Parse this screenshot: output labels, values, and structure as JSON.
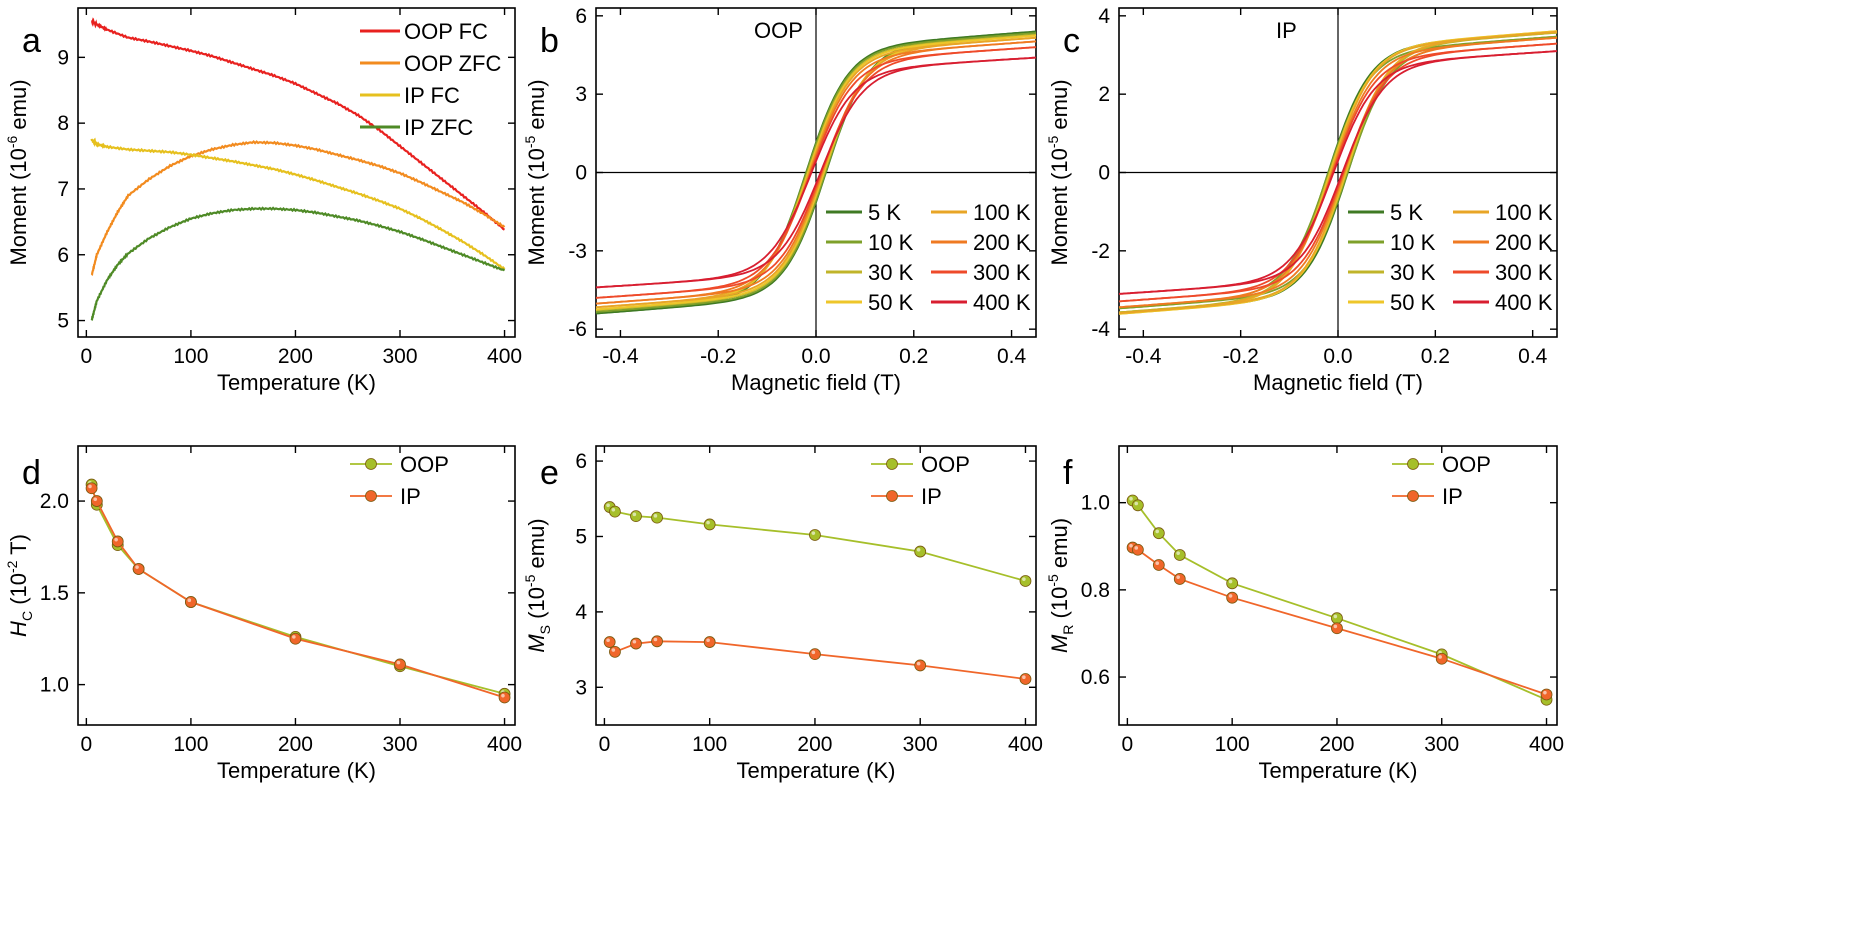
{
  "figure": {
    "colors": {
      "oop_fc": "#e8211f",
      "oop_zfc": "#f28b1f",
      "ip_fc": "#e6c01e",
      "ip_zfc": "#4e8a26",
      "oop_marker": "#a6bf2a",
      "ip_marker": "#f0662a",
      "t5": "#3f7a24",
      "t10": "#7ea02a",
      "t30": "#c0b42a",
      "t50": "#eec62a",
      "t100": "#e8a526",
      "t200": "#ef7a22",
      "t300": "#ee4a2a",
      "t400": "#d81e30"
    }
  },
  "chart_data": [
    {
      "panel": "a",
      "type": "line",
      "xlabel": "Temperature (K)",
      "ylabel": {
        "main": "Moment (10",
        "sup": "-6",
        "unit": " emu)"
      },
      "xlim": [
        -8,
        410
      ],
      "ylim": [
        4.75,
        9.75
      ],
      "xticks": [
        "0",
        "100",
        "200",
        "300",
        "400"
      ],
      "yticks": [
        "5",
        "6",
        "7",
        "8",
        "9"
      ],
      "series": [
        {
          "name": "OOP FC",
          "x": [
            5,
            10,
            20,
            40,
            60,
            80,
            100,
            120,
            140,
            160,
            180,
            200,
            220,
            240,
            260,
            280,
            300,
            320,
            340,
            360,
            380,
            400
          ],
          "y": [
            9.55,
            9.5,
            9.42,
            9.3,
            9.24,
            9.17,
            9.1,
            9.02,
            8.92,
            8.82,
            8.72,
            8.6,
            8.45,
            8.3,
            8.12,
            7.9,
            7.65,
            7.4,
            7.15,
            6.9,
            6.65,
            6.38
          ]
        },
        {
          "name": "OOP ZFC",
          "x": [
            5,
            10,
            20,
            30,
            40,
            60,
            80,
            100,
            120,
            140,
            160,
            180,
            200,
            220,
            240,
            260,
            280,
            300,
            320,
            340,
            360,
            380,
            400
          ],
          "y": [
            5.68,
            6.0,
            6.35,
            6.65,
            6.9,
            7.15,
            7.35,
            7.5,
            7.6,
            7.67,
            7.71,
            7.7,
            7.66,
            7.6,
            7.52,
            7.44,
            7.35,
            7.24,
            7.1,
            6.95,
            6.8,
            6.62,
            6.42
          ]
        },
        {
          "name": "IP FC",
          "x": [
            5,
            10,
            20,
            40,
            60,
            80,
            100,
            120,
            140,
            160,
            180,
            200,
            220,
            240,
            260,
            280,
            300,
            320,
            340,
            360,
            380,
            400
          ],
          "y": [
            7.75,
            7.68,
            7.64,
            7.6,
            7.58,
            7.56,
            7.52,
            7.47,
            7.42,
            7.36,
            7.3,
            7.22,
            7.13,
            7.03,
            6.93,
            6.82,
            6.7,
            6.55,
            6.38,
            6.2,
            6.0,
            5.78
          ]
        },
        {
          "name": "IP ZFC",
          "x": [
            5,
            10,
            20,
            30,
            40,
            60,
            80,
            100,
            120,
            140,
            160,
            180,
            200,
            220,
            240,
            260,
            280,
            300,
            320,
            340,
            360,
            380,
            400
          ],
          "y": [
            5.0,
            5.3,
            5.62,
            5.85,
            6.02,
            6.25,
            6.42,
            6.55,
            6.63,
            6.68,
            6.7,
            6.7,
            6.68,
            6.64,
            6.58,
            6.52,
            6.44,
            6.35,
            6.24,
            6.12,
            6.0,
            5.88,
            5.76
          ]
        }
      ]
    },
    {
      "panel": "b",
      "type": "line",
      "annotation": "OOP",
      "xlabel": "Magnetic field (T)",
      "ylabel": {
        "main": "Moment (10",
        "sup": "-5",
        "unit": " emu)"
      },
      "xlim": [
        -0.45,
        0.45
      ],
      "ylim": [
        -6.3,
        6.3
      ],
      "xticks": [
        "-0.4",
        "-0.2",
        "0.0",
        "0.2",
        "0.4"
      ],
      "yticks": [
        "-6",
        "-3",
        "0",
        "3",
        "6"
      ],
      "series": [
        {
          "name": "5 K",
          "ms": 5.4,
          "hc": 0.0209
        },
        {
          "name": "10 K",
          "ms": 5.34,
          "hc": 0.0198
        },
        {
          "name": "30 K",
          "ms": 5.27,
          "hc": 0.0176
        },
        {
          "name": "50 K",
          "ms": 5.24,
          "hc": 0.0163
        },
        {
          "name": "100 K",
          "ms": 5.16,
          "hc": 0.0145
        },
        {
          "name": "200 K",
          "ms": 5.02,
          "hc": 0.0126
        },
        {
          "name": "300 K",
          "ms": 4.8,
          "hc": 0.011
        },
        {
          "name": "400 K",
          "ms": 4.4,
          "hc": 0.0095
        }
      ]
    },
    {
      "panel": "c",
      "type": "line",
      "annotation": "IP",
      "xlabel": "Magnetic field (T)",
      "ylabel": {
        "main": "Moment (10",
        "sup": "-5",
        "unit": " emu)"
      },
      "xlim": [
        -0.45,
        0.45
      ],
      "ylim": [
        -4.2,
        4.2
      ],
      "xticks": [
        "-0.4",
        "-0.2",
        "0.0",
        "0.2",
        "0.4"
      ],
      "yticks": [
        "-4",
        "-2",
        "0",
        "2",
        "4"
      ],
      "series": [
        {
          "name": "5 K",
          "ms": 3.6,
          "hc": 0.0207
        },
        {
          "name": "10 K",
          "ms": 3.47,
          "hc": 0.02
        },
        {
          "name": "30 K",
          "ms": 3.57,
          "hc": 0.0178
        },
        {
          "name": "50 K",
          "ms": 3.61,
          "hc": 0.0163
        },
        {
          "name": "100 K",
          "ms": 3.59,
          "hc": 0.0145
        },
        {
          "name": "200 K",
          "ms": 3.44,
          "hc": 0.0125
        },
        {
          "name": "300 K",
          "ms": 3.29,
          "hc": 0.0111
        },
        {
          "name": "400 K",
          "ms": 3.1,
          "hc": 0.0093
        }
      ]
    },
    {
      "panel": "d",
      "type": "scatter",
      "xlabel": "Temperature (K)",
      "ylabel": {
        "main": "H",
        "sub": "C",
        "rest": " (10",
        "sup": "-2",
        "unit": " T)"
      },
      "xlim": [
        -8,
        410
      ],
      "ylim": [
        0.78,
        2.3
      ],
      "xticks": [
        "0",
        "100",
        "200",
        "300",
        "400"
      ],
      "yticks": [
        "1.0",
        "1.5",
        "2.0"
      ],
      "series": [
        {
          "name": "OOP",
          "x": [
            5,
            10,
            30,
            50,
            100,
            200,
            300,
            400
          ],
          "y": [
            2.09,
            1.98,
            1.76,
            1.63,
            1.45,
            1.26,
            1.1,
            0.95
          ]
        },
        {
          "name": "IP",
          "x": [
            5,
            10,
            30,
            50,
            100,
            200,
            300,
            400
          ],
          "y": [
            2.07,
            2.0,
            1.78,
            1.63,
            1.45,
            1.25,
            1.11,
            0.93
          ]
        }
      ]
    },
    {
      "panel": "e",
      "type": "scatter",
      "xlabel": "Temperature (K)",
      "ylabel": {
        "main": "M",
        "sub": "S",
        "rest": " (10",
        "sup": "-5",
        "unit": " emu)"
      },
      "xlim": [
        -8,
        410
      ],
      "ylim": [
        2.5,
        6.2
      ],
      "xticks": [
        "0",
        "100",
        "200",
        "300",
        "400"
      ],
      "yticks": [
        "3",
        "4",
        "5",
        "6"
      ],
      "series": [
        {
          "name": "OOP",
          "x": [
            5,
            10,
            30,
            50,
            100,
            200,
            300,
            400
          ],
          "y": [
            5.39,
            5.33,
            5.27,
            5.25,
            5.16,
            5.02,
            4.8,
            4.41
          ]
        },
        {
          "name": "IP",
          "x": [
            5,
            10,
            30,
            50,
            100,
            200,
            300,
            400
          ],
          "y": [
            3.6,
            3.47,
            3.58,
            3.61,
            3.6,
            3.44,
            3.29,
            3.11
          ]
        }
      ]
    },
    {
      "panel": "f",
      "type": "scatter",
      "xlabel": "Temperature (K)",
      "ylabel": {
        "main": "M",
        "sub": "R",
        "rest": " (10",
        "sup": "-5",
        "unit": " emu)"
      },
      "xlim": [
        -8,
        410
      ],
      "ylim": [
        0.49,
        1.13
      ],
      "xticks": [
        "0",
        "100",
        "200",
        "300",
        "400"
      ],
      "yticks": [
        "0.6",
        "0.8",
        "1.0"
      ],
      "series": [
        {
          "name": "OOP",
          "x": [
            5,
            10,
            30,
            50,
            100,
            200,
            300,
            400
          ],
          "y": [
            1.005,
            0.994,
            0.93,
            0.88,
            0.815,
            0.735,
            0.652,
            0.548
          ]
        },
        {
          "name": "IP",
          "x": [
            5,
            10,
            30,
            50,
            100,
            200,
            300,
            400
          ],
          "y": [
            0.897,
            0.892,
            0.857,
            0.825,
            0.782,
            0.712,
            0.642,
            0.56
          ]
        }
      ]
    }
  ]
}
